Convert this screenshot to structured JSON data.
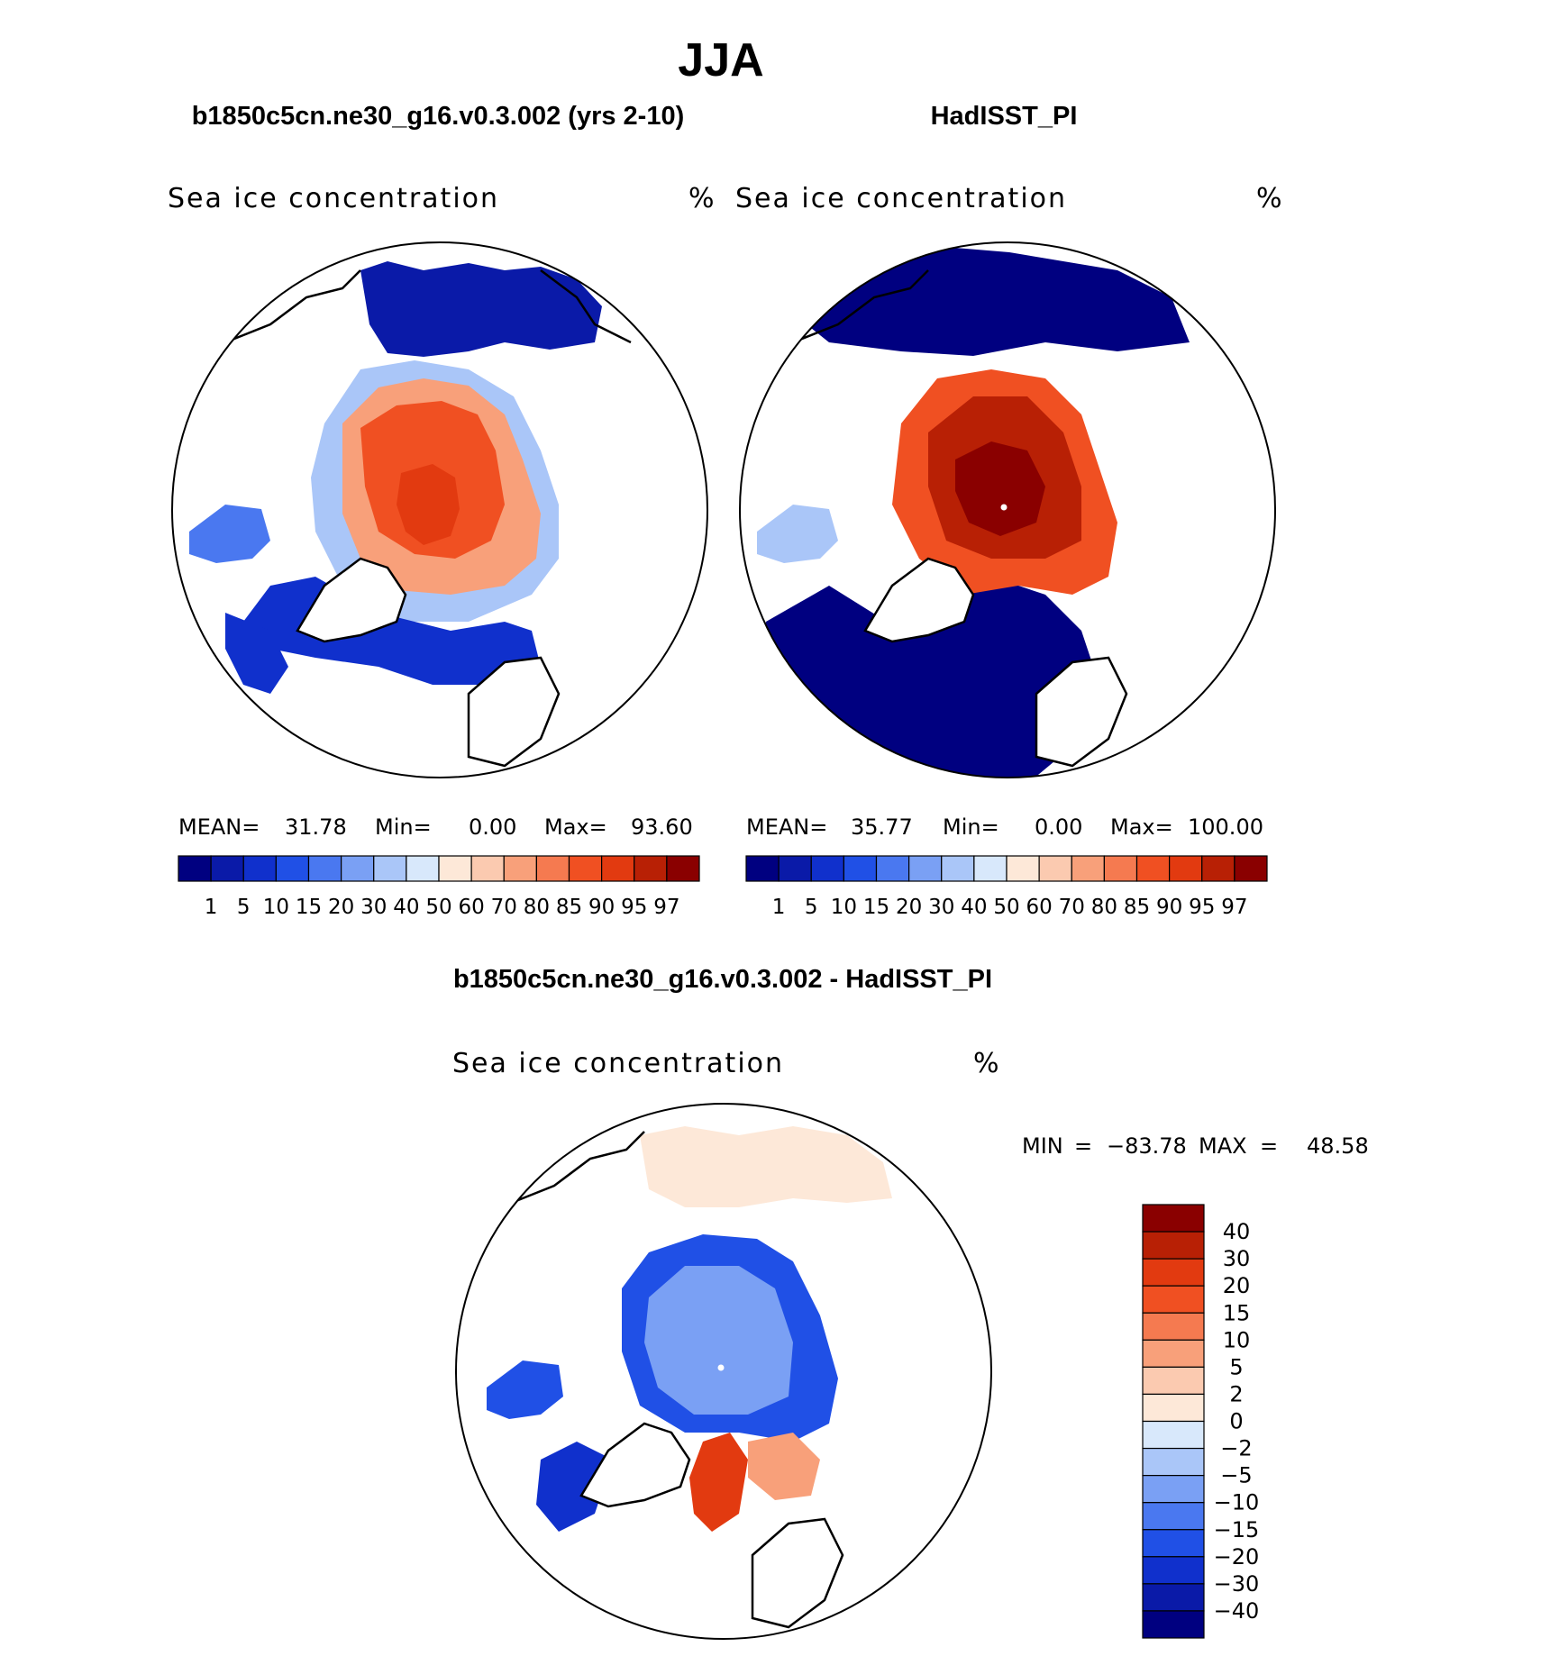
{
  "page": {
    "title": "JJA"
  },
  "panels": [
    {
      "id": "model",
      "header": "b1850c5cn.ne30_g16.v0.3.002 (yrs 2-10)",
      "variable": "Sea ice concentration",
      "units": "%",
      "stats": {
        "mean_label": "MEAN=",
        "mean": "31.78",
        "min_label": "Min=",
        "min": "0.00",
        "max_label": "Max=",
        "max": "93.60"
      }
    },
    {
      "id": "obs",
      "header": "HadISST_PI",
      "variable": "Sea ice concentration",
      "units": "%",
      "stats": {
        "mean_label": "MEAN=",
        "mean": "35.77",
        "min_label": "Min=",
        "min": "0.00",
        "max_label": "Max=",
        "max": "100.00"
      }
    }
  ],
  "concentration_colorbar": {
    "labels": [
      "1",
      "5",
      "10",
      "15",
      "20",
      "30",
      "40",
      "50",
      "60",
      "70",
      "80",
      "85",
      "90",
      "95",
      "97"
    ],
    "colors": [
      "#000080",
      "#0a1aa8",
      "#1030cc",
      "#2050e6",
      "#4a78f0",
      "#7aa0f4",
      "#aac6f8",
      "#d8e8fb",
      "#fde8d8",
      "#fbcab0",
      "#f8a07a",
      "#f57a50",
      "#f05022",
      "#e23a10",
      "#b82005",
      "#8a0000"
    ]
  },
  "difference_panel": {
    "header": "b1850c5cn.ne30_g16.v0.3.002 - HadISST_PI",
    "variable": "Sea ice concentration",
    "units": "%",
    "stats": {
      "min_label": "MIN",
      "min": "−83.78",
      "max_label": "MAX",
      "max": "48.58",
      "equals": "="
    }
  },
  "difference_colorbar": {
    "labels_top_to_bottom": [
      "40",
      "30",
      "20",
      "15",
      "10",
      "5",
      "2",
      "0",
      "−2",
      "−5",
      "−10",
      "−15",
      "−20",
      "−30",
      "−40"
    ],
    "colors_top_to_bottom": [
      "#8a0000",
      "#b82005",
      "#e23a10",
      "#f05022",
      "#f57a50",
      "#f8a07a",
      "#fbcab0",
      "#fde8d8",
      "#d8e8fb",
      "#aac6f8",
      "#7aa0f4",
      "#4a78f0",
      "#2050e6",
      "#1030cc",
      "#0a1aa8",
      "#000080"
    ]
  }
}
